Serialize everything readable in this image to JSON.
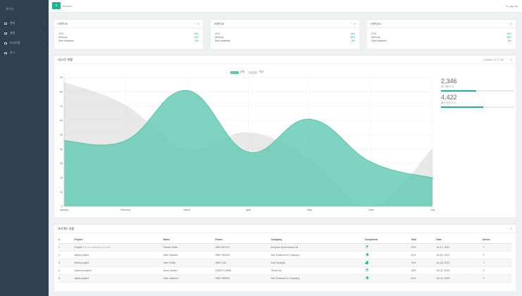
{
  "sidebar": {
    "brand": "관리자",
    "items": [
      {
        "label": "관리"
      },
      {
        "label": "설정"
      },
      {
        "label": "모니터링"
      },
      {
        "label": "로그"
      }
    ]
  },
  "topbar": {
    "menu_icon": "bars-icon",
    "title": "Monitor",
    "logout": "Log out"
  },
  "servers": [
    {
      "title": "서버 #1",
      "rows": [
        {
          "k": "CPU",
          "v": "16%"
        },
        {
          "k": "Memory",
          "v": "36%"
        },
        {
          "k": "Disk Available",
          "v": "8%"
        }
      ]
    },
    {
      "title": "서버 #2",
      "rows": [
        {
          "k": "CPU",
          "v": "16%"
        },
        {
          "k": "Memory",
          "v": "35%"
        },
        {
          "k": "Disk Available",
          "v": "8%"
        }
      ]
    },
    {
      "title": "서버 #3",
      "rows": [
        {
          "k": "CPU",
          "v": "16%"
        },
        {
          "k": "Memory",
          "v": "36%"
        },
        {
          "k": "Disk Available",
          "v": "8%"
        }
      ]
    }
  ],
  "chart_panel": {
    "title": "실시간 현황",
    "right_note": "Updated 10:27 AM"
  },
  "stats": [
    {
      "value": "2,346",
      "label": "총 사용자 수",
      "progress": 0.48
    },
    {
      "value": "4,422",
      "label": "월간 방문자 수",
      "progress": 0.58
    }
  ],
  "chart_data": {
    "type": "area",
    "categories": [
      "January",
      "February",
      "March",
      "April",
      "May",
      "June",
      "July"
    ],
    "series": [
      {
        "name": "이번",
        "values": [
          46,
          46,
          81,
          38,
          61,
          31,
          20
        ],
        "color": "#5ec9b0"
      },
      {
        "name": "지난",
        "values": [
          87,
          71,
          40,
          52,
          33,
          1,
          41
        ],
        "color": "#dcdcdc"
      }
    ],
    "ylim": [
      0,
      90
    ],
    "yticks": [
      0,
      10,
      20,
      30,
      40,
      50,
      60,
      70,
      80,
      90
    ],
    "grid": true,
    "legend": "top-center"
  },
  "table_panel": {
    "title": "프로젝트 현황",
    "headers": [
      "#",
      "Project",
      "Name",
      "Phone",
      "Company",
      "Completed",
      "Task",
      "Date",
      "Action"
    ],
    "rows": [
      {
        "n": "1",
        "project": "Project",
        "sub": "This is example of project",
        "name": "Patrick Smith",
        "phone": "0800 051213",
        "company": "Inceptos Hymenaeos Ltd",
        "completed": 0.2,
        "task": "20%",
        "date": "Jul 14, 2013"
      },
      {
        "n": "2",
        "project": "Alpha project",
        "sub": "",
        "name": "Alice Jackson",
        "phone": "0500 780909",
        "company": "Nec Euismod In Company",
        "completed": 0.4,
        "task": "40%",
        "date": "Jul 16, 2013"
      },
      {
        "n": "3",
        "project": "Betha project",
        "sub": "",
        "name": "John Smith",
        "phone": "0800 1111",
        "company": "Erat Volutpat",
        "completed": 0.75,
        "task": "75%",
        "date": "Jul 18, 2013"
      },
      {
        "n": "4",
        "project": "Gamma project",
        "sub": "",
        "name": "Anna Jordan",
        "phone": "(016977) 0648",
        "company": "Tellus Ltd",
        "completed": 0.18,
        "task": "18%",
        "date": "Jul 22, 2013"
      },
      {
        "n": "5",
        "project": "Alpha project",
        "sub": "",
        "name": "Alice Jackson",
        "phone": "0500 780909",
        "company": "Nec Euismod In Company",
        "completed": 0.4,
        "task": "40%",
        "date": "Jul 16, 2013"
      }
    ]
  },
  "colors": {
    "accent": "#1ab394",
    "sidebar": "#2f4050"
  }
}
